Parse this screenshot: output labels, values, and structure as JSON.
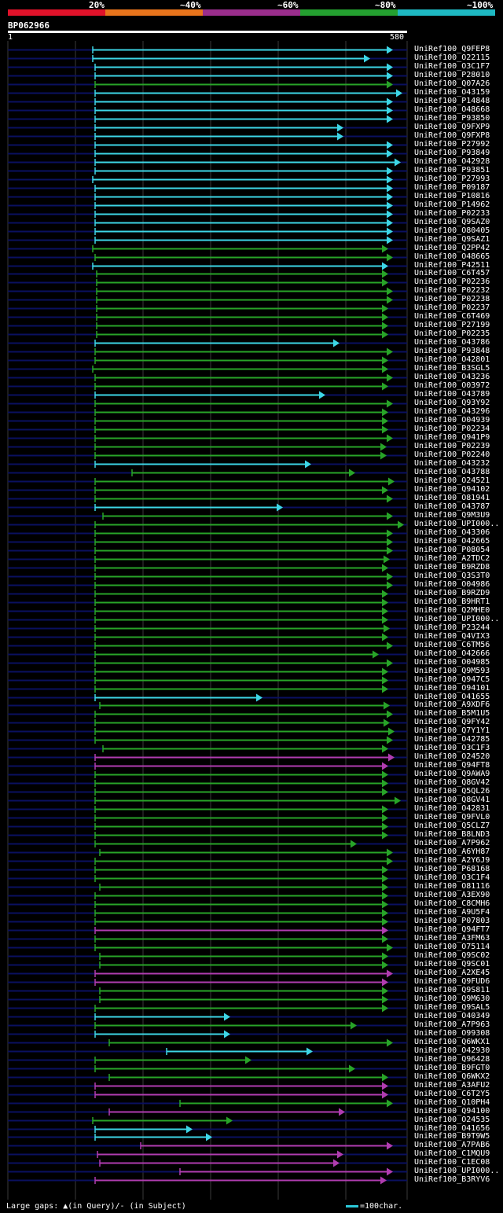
{
  "legend": {
    "labels": [
      "20%",
      "~40%",
      "~60%",
      "~80%",
      "~100%"
    ],
    "colors": [
      "#e0122a",
      "#e8741c",
      "#9a2e8c",
      "#24a030",
      "#1eb8c2"
    ]
  },
  "query": {
    "id": "BP062966",
    "ruler_start": "1",
    "ruler_end": "580"
  },
  "colors": {
    "cyan": "#3dd6e6",
    "green": "#28a428",
    "purple": "#b03cb0",
    "navy": "#0a1060",
    "grid": "#3a3a3a"
  },
  "hits": [
    {
      "label": "UniRef100_Q9FEP8",
      "c": "cyan",
      "s": 118,
      "e": 500
    },
    {
      "label": "UniRef100_O22115",
      "c": "cyan",
      "s": 118,
      "e": 471
    },
    {
      "label": "UniRef100_O3C1F7",
      "c": "cyan",
      "s": 121,
      "e": 500
    },
    {
      "label": "UniRef100_P28010",
      "c": "cyan",
      "s": 121,
      "e": 500
    },
    {
      "label": "UniRef100_Q07A26",
      "c": "green",
      "s": 121,
      "e": 500
    },
    {
      "label": "UniRef100_O43159",
      "c": "cyan",
      "s": 121,
      "e": 512
    },
    {
      "label": "UniRef100_P14848",
      "c": "cyan",
      "s": 121,
      "e": 500
    },
    {
      "label": "UniRef100_O48668",
      "c": "cyan",
      "s": 121,
      "e": 500
    },
    {
      "label": "UniRef100_P93850",
      "c": "cyan",
      "s": 121,
      "e": 500
    },
    {
      "label": "UniRef100_Q9FXP9",
      "c": "cyan",
      "s": 121,
      "e": 437
    },
    {
      "label": "UniRef100_Q9FXP8",
      "c": "cyan",
      "s": 121,
      "e": 437
    },
    {
      "label": "UniRef100_P27992",
      "c": "cyan",
      "s": 121,
      "e": 500
    },
    {
      "label": "UniRef100_P93849",
      "c": "cyan",
      "s": 121,
      "e": 500
    },
    {
      "label": "UniRef100_O42928",
      "c": "cyan",
      "s": 121,
      "e": 510
    },
    {
      "label": "UniRef100_P93851",
      "c": "cyan",
      "s": 121,
      "e": 500
    },
    {
      "label": "UniRef100_P27993",
      "c": "cyan",
      "s": 118,
      "e": 500
    },
    {
      "label": "UniRef100_P09187",
      "c": "cyan",
      "s": 121,
      "e": 500
    },
    {
      "label": "UniRef100_P10816",
      "c": "cyan",
      "s": 121,
      "e": 500
    },
    {
      "label": "UniRef100_P14962",
      "c": "cyan",
      "s": 121,
      "e": 500
    },
    {
      "label": "UniRef100_P02233",
      "c": "cyan",
      "s": 121,
      "e": 500
    },
    {
      "label": "UniRef100_Q9SAZ0",
      "c": "cyan",
      "s": 121,
      "e": 500
    },
    {
      "label": "UniRef100_O80405",
      "c": "cyan",
      "s": 121,
      "e": 500
    },
    {
      "label": "UniRef100_Q9SAZ1",
      "c": "cyan",
      "s": 121,
      "e": 500
    },
    {
      "label": "UniRef100_Q2PP42",
      "c": "green",
      "s": 118,
      "e": 494
    },
    {
      "label": "UniRef100_O48665",
      "c": "green",
      "s": 121,
      "e": 500
    },
    {
      "label": "UniRef100_P42511",
      "c": "cyan",
      "s": 118,
      "e": 494
    },
    {
      "label": "UniRef100_C6T457",
      "c": "green",
      "s": 123,
      "e": 494
    },
    {
      "label": "UniRef100_P02236",
      "c": "green",
      "s": 123,
      "e": 494
    },
    {
      "label": "UniRef100_P02232",
      "c": "green",
      "s": 123,
      "e": 500
    },
    {
      "label": "UniRef100_P02238",
      "c": "green",
      "s": 123,
      "e": 500
    },
    {
      "label": "UniRef100_P02237",
      "c": "green",
      "s": 123,
      "e": 494
    },
    {
      "label": "UniRef100_C6T469",
      "c": "green",
      "s": 123,
      "e": 494
    },
    {
      "label": "UniRef100_P27199",
      "c": "green",
      "s": 123,
      "e": 494
    },
    {
      "label": "UniRef100_P02235",
      "c": "green",
      "s": 123,
      "e": 494
    },
    {
      "label": "UniRef100_O43786",
      "c": "cyan",
      "s": 121,
      "e": 432
    },
    {
      "label": "UniRef100_P93848",
      "c": "green",
      "s": 121,
      "e": 500
    },
    {
      "label": "UniRef100_O42801",
      "c": "green",
      "s": 121,
      "e": 494
    },
    {
      "label": "UniRef100_B3SGL5",
      "c": "green",
      "s": 118,
      "e": 494
    },
    {
      "label": "UniRef100_O43236",
      "c": "green",
      "s": 121,
      "e": 500
    },
    {
      "label": "UniRef100_O03972",
      "c": "green",
      "s": 121,
      "e": 494
    },
    {
      "label": "UniRef100_O43789",
      "c": "cyan",
      "s": 121,
      "e": 414
    },
    {
      "label": "UniRef100_Q93Y92",
      "c": "green",
      "s": 121,
      "e": 500
    },
    {
      "label": "UniRef100_O43296",
      "c": "green",
      "s": 121,
      "e": 494
    },
    {
      "label": "UniRef100_O04939",
      "c": "green",
      "s": 121,
      "e": 494
    },
    {
      "label": "UniRef100_P02234",
      "c": "green",
      "s": 121,
      "e": 494
    },
    {
      "label": "UniRef100_Q941P9",
      "c": "green",
      "s": 121,
      "e": 500
    },
    {
      "label": "UniRef100_P02239",
      "c": "green",
      "s": 121,
      "e": 492
    },
    {
      "label": "UniRef100_P02240",
      "c": "green",
      "s": 121,
      "e": 492
    },
    {
      "label": "UniRef100_O43232",
      "c": "cyan",
      "s": 121,
      "e": 396
    },
    {
      "label": "UniRef100_O43788",
      "c": "green",
      "s": 168,
      "e": 452
    },
    {
      "label": "UniRef100_O24521",
      "c": "green",
      "s": 121,
      "e": 502
    },
    {
      "label": "UniRef100_Q94102",
      "c": "green",
      "s": 121,
      "e": 494
    },
    {
      "label": "UniRef100_O81941",
      "c": "green",
      "s": 121,
      "e": 500
    },
    {
      "label": "UniRef100_O43787",
      "c": "cyan",
      "s": 121,
      "e": 360
    },
    {
      "label": "UniRef100_Q9M3U9",
      "c": "green",
      "s": 131,
      "e": 500
    },
    {
      "label": "UniRef100_UPI000..",
      "c": "green",
      "s": 121,
      "e": 514
    },
    {
      "label": "UniRef100_O43306",
      "c": "green",
      "s": 121,
      "e": 500
    },
    {
      "label": "UniRef100_O42665",
      "c": "green",
      "s": 121,
      "e": 500
    },
    {
      "label": "UniRef100_P08054",
      "c": "green",
      "s": 121,
      "e": 500
    },
    {
      "label": "UniRef100_A2TDC2",
      "c": "green",
      "s": 121,
      "e": 496
    },
    {
      "label": "UniRef100_B9RZD8",
      "c": "green",
      "s": 121,
      "e": 494
    },
    {
      "label": "UniRef100_Q3S3T0",
      "c": "green",
      "s": 121,
      "e": 500
    },
    {
      "label": "UniRef100_O04986",
      "c": "green",
      "s": 121,
      "e": 500
    },
    {
      "label": "UniRef100_B9RZD9",
      "c": "green",
      "s": 121,
      "e": 494
    },
    {
      "label": "UniRef100_B9HRT1",
      "c": "green",
      "s": 121,
      "e": 494
    },
    {
      "label": "UniRef100_Q2MHE0",
      "c": "green",
      "s": 121,
      "e": 494
    },
    {
      "label": "UniRef100_UPI000..",
      "c": "green",
      "s": 121,
      "e": 494
    },
    {
      "label": "UniRef100_P23244",
      "c": "green",
      "s": 121,
      "e": 496
    },
    {
      "label": "UniRef100_Q4VIX3",
      "c": "green",
      "s": 121,
      "e": 494
    },
    {
      "label": "UniRef100_C6TM56",
      "c": "green",
      "s": 121,
      "e": 500
    },
    {
      "label": "UniRef100_O42666",
      "c": "green",
      "s": 121,
      "e": 482
    },
    {
      "label": "UniRef100_O04985",
      "c": "green",
      "s": 121,
      "e": 500
    },
    {
      "label": "UniRef100_Q9M593",
      "c": "green",
      "s": 121,
      "e": 494
    },
    {
      "label": "UniRef100_Q947C5",
      "c": "green",
      "s": 121,
      "e": 494
    },
    {
      "label": "UniRef100_O94101",
      "c": "green",
      "s": 121,
      "e": 494
    },
    {
      "label": "UniRef100_O41655",
      "c": "cyan",
      "s": 121,
      "e": 334
    },
    {
      "label": "UniRef100_A9XDF6",
      "c": "green",
      "s": 127,
      "e": 496
    },
    {
      "label": "UniRef100_B5M1U5",
      "c": "green",
      "s": 121,
      "e": 500
    },
    {
      "label": "UniRef100_Q9FY42",
      "c": "green",
      "s": 121,
      "e": 496
    },
    {
      "label": "UniRef100_Q7Y1Y1",
      "c": "green",
      "s": 121,
      "e": 502
    },
    {
      "label": "UniRef100_O42785",
      "c": "green",
      "s": 121,
      "e": 500
    },
    {
      "label": "UniRef100_O3C1F3",
      "c": "green",
      "s": 131,
      "e": 494
    },
    {
      "label": "UniRef100_O24520",
      "c": "purple",
      "s": 121,
      "e": 502
    },
    {
      "label": "UniRef100_Q94FT8",
      "c": "purple",
      "s": 121,
      "e": 494
    },
    {
      "label": "UniRef100_Q9AWA9",
      "c": "green",
      "s": 121,
      "e": 494
    },
    {
      "label": "UniRef100_Q8GV42",
      "c": "green",
      "s": 121,
      "e": 494
    },
    {
      "label": "UniRef100_Q5QL26",
      "c": "green",
      "s": 121,
      "e": 494
    },
    {
      "label": "UniRef100_Q8GV41",
      "c": "green",
      "s": 121,
      "e": 510
    },
    {
      "label": "UniRef100_O42831",
      "c": "green",
      "s": 121,
      "e": 494
    },
    {
      "label": "UniRef100_Q9FVL0",
      "c": "green",
      "s": 121,
      "e": 494
    },
    {
      "label": "UniRef100_Q5CLZ7",
      "c": "green",
      "s": 121,
      "e": 494
    },
    {
      "label": "UniRef100_B8LND3",
      "c": "green",
      "s": 121,
      "e": 494
    },
    {
      "label": "UniRef100_A7P962",
      "c": "green",
      "s": 121,
      "e": 454
    },
    {
      "label": "UniRef100_A6YH87",
      "c": "green",
      "s": 127,
      "e": 500
    },
    {
      "label": "UniRef100_A2Y6J9",
      "c": "green",
      "s": 121,
      "e": 500
    },
    {
      "label": "UniRef100_P68168",
      "c": "green",
      "s": 121,
      "e": 494
    },
    {
      "label": "UniRef100_O3C1F4",
      "c": "green",
      "s": 121,
      "e": 494
    },
    {
      "label": "UniRef100_O81116",
      "c": "green",
      "s": 127,
      "e": 494
    },
    {
      "label": "UniRef100_A3EX90",
      "c": "green",
      "s": 121,
      "e": 494
    },
    {
      "label": "UniRef100_C8CMH6",
      "c": "green",
      "s": 121,
      "e": 494
    },
    {
      "label": "UniRef100_A9U5F4",
      "c": "green",
      "s": 121,
      "e": 494
    },
    {
      "label": "UniRef100_P07803",
      "c": "green",
      "s": 121,
      "e": 494
    },
    {
      "label": "UniRef100_Q94FT7",
      "c": "purple",
      "s": 121,
      "e": 494
    },
    {
      "label": "UniRef100_A3FM63",
      "c": "green",
      "s": 121,
      "e": 494
    },
    {
      "label": "UniRef100_O75114",
      "c": "green",
      "s": 121,
      "e": 500
    },
    {
      "label": "UniRef100_Q9SC02",
      "c": "green",
      "s": 127,
      "e": 494
    },
    {
      "label": "UniRef100_Q9SC01",
      "c": "green",
      "s": 127,
      "e": 494
    },
    {
      "label": "UniRef100_A2XE45",
      "c": "purple",
      "s": 121,
      "e": 500
    },
    {
      "label": "UniRef100_Q9FUD6",
      "c": "purple",
      "s": 121,
      "e": 494
    },
    {
      "label": "UniRef100_Q9S811",
      "c": "green",
      "s": 127,
      "e": 494
    },
    {
      "label": "UniRef100_Q9M630",
      "c": "green",
      "s": 127,
      "e": 494
    },
    {
      "label": "UniRef100_Q9SAL5",
      "c": "green",
      "s": 121,
      "e": 494
    },
    {
      "label": "UniRef100_O40349",
      "c": "cyan",
      "s": 121,
      "e": 293
    },
    {
      "label": "UniRef100_A7P963",
      "c": "green",
      "s": 121,
      "e": 454
    },
    {
      "label": "UniRef100_O99308",
      "c": "cyan",
      "s": 121,
      "e": 293
    },
    {
      "label": "UniRef100_Q6WKX1",
      "c": "green",
      "s": 139,
      "e": 500
    },
    {
      "label": "UniRef100_O42930",
      "c": "cyan",
      "s": 212,
      "e": 398
    },
    {
      "label": "UniRef100_Q96428",
      "c": "green",
      "s": 121,
      "e": 320
    },
    {
      "label": "UniRef100_B9FGT0",
      "c": "green",
      "s": 121,
      "e": 452
    },
    {
      "label": "UniRef100_Q6WKX2",
      "c": "green",
      "s": 139,
      "e": 494
    },
    {
      "label": "UniRef100_A3AFU2",
      "c": "purple",
      "s": 121,
      "e": 494
    },
    {
      "label": "UniRef100_C6T2Y5",
      "c": "purple",
      "s": 121,
      "e": 494
    },
    {
      "label": "UniRef100_Q10PH4",
      "c": "green",
      "s": 229,
      "e": 500
    },
    {
      "label": "UniRef100_Q94100",
      "c": "purple",
      "s": 139,
      "e": 439
    },
    {
      "label": "UniRef100_O24535",
      "c": "green",
      "s": 118,
      "e": 296
    },
    {
      "label": "UniRef100_O41656",
      "c": "cyan",
      "s": 121,
      "e": 245
    },
    {
      "label": "UniRef100_B9T9W5",
      "c": "cyan",
      "s": 121,
      "e": 270
    },
    {
      "label": "UniRef100_A7PAB6",
      "c": "purple",
      "s": 179,
      "e": 500
    },
    {
      "label": "UniRef100_C1MQU9",
      "c": "purple",
      "s": 124,
      "e": 437
    },
    {
      "label": "UniRef100_C1EC08",
      "c": "purple",
      "s": 127,
      "e": 432
    },
    {
      "label": "UniRef100_UPI000..",
      "c": "purple",
      "s": 229,
      "e": 500
    },
    {
      "label": "UniRef100_B3RYV6",
      "c": "purple",
      "s": 121,
      "e": 492
    }
  ],
  "footer": {
    "gaps_label": "Large gaps: ▲(in Query)/- (in Subject)",
    "scale_label": "=100char."
  }
}
